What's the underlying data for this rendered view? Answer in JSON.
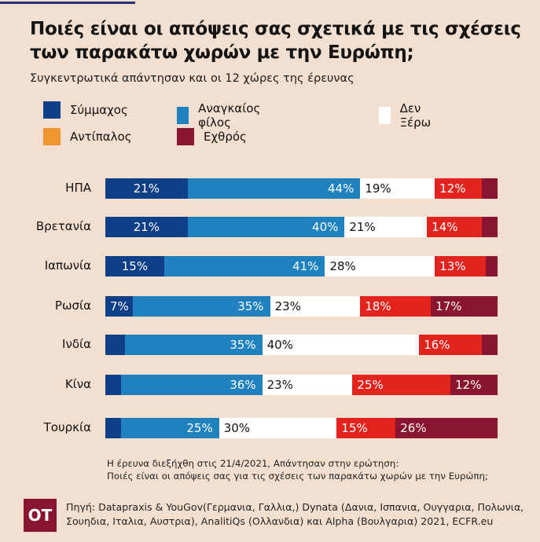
{
  "header": {
    "title": "Ποιές είναι οι απόψεις σας σχετικά με τις σχέσεις των παρακάτω χωρών με την Ευρώπη;",
    "subtitle": "Συγκεντρωτικά απάντησαν και οι 12 χώρες της έρευνας"
  },
  "chart_data": {
    "type": "bar",
    "orientation": "horizontal",
    "stacked": true,
    "title": "Ποιές είναι οι απόψεις σας σχετικά με τις σχέσεις των παρακάτω χωρών με την Ευρώπη;",
    "subtitle": "Συγκεντρωτικά απάντησαν και οι 12 χώρες της έρευνας",
    "xlabel": "",
    "ylabel": "",
    "unit": "%",
    "legend_position": "top",
    "categories": [
      "ΗΠΑ",
      "Βρετανία",
      "Ιαπωνία",
      "Ρωσία",
      "Ινδία",
      "Κίνα",
      "Τουρκία"
    ],
    "series": [
      {
        "name": "Σύμμαχος",
        "legend_color": "#0f3f86",
        "bar_color": "#0f3f86",
        "text_color": "#ffffff",
        "values": [
          21,
          21,
          15,
          7,
          5,
          4,
          4
        ],
        "labels": [
          "21%",
          "21%",
          "15%",
          "7%",
          "",
          "",
          ""
        ],
        "label_align": "center"
      },
      {
        "name": "Αναγκαίος φίλος",
        "legend_color": "#1f82bf",
        "bar_color": "#1f82bf",
        "text_color": "#ffffff",
        "values": [
          44,
          40,
          41,
          35,
          35,
          36,
          25
        ],
        "labels": [
          "44%",
          "40%",
          "41%",
          "35%",
          "35%",
          "36%",
          "25%"
        ],
        "label_align": "right"
      },
      {
        "name": "Δεν Ξέρω",
        "legend_color": "#ffffff",
        "bar_color": "#ffffff",
        "text_color": "#111111",
        "values": [
          19,
          21,
          28,
          23,
          40,
          23,
          30
        ],
        "labels": [
          "19%",
          "21%",
          "28%",
          "23%",
          "40%",
          "23%",
          "30%"
        ],
        "label_align": "left"
      },
      {
        "name": "Αντίπαλος",
        "legend_color": "#f0962f",
        "bar_color": "#e3231d",
        "text_color": "#ffffff",
        "values": [
          12,
          14,
          13,
          18,
          16,
          25,
          15
        ],
        "labels": [
          "12%",
          "14%",
          "13%",
          "18%",
          "16%",
          "25%",
          "15%"
        ],
        "label_align": "left"
      },
      {
        "name": "Εχθρός",
        "legend_color": "#8a1530",
        "bar_color": "#8a1530",
        "text_color": "#ffffff",
        "values": [
          4,
          4,
          3,
          17,
          4,
          12,
          26
        ],
        "labels": [
          "",
          "",
          "",
          "17%",
          "",
          "12%",
          "26%"
        ],
        "label_align": "left"
      }
    ],
    "xlim": [
      0,
      100
    ],
    "grid": false
  },
  "legend": {
    "items": [
      "Σύμμαχος",
      "Αναγκαίος φίλος",
      "Δεν Ξέρω",
      "Αντίπαλος",
      "Εχθρός"
    ]
  },
  "footer": {
    "note_line1": "Η έρευνα διεξήχθη στις 21/4/2021, Απάντησαν στην ερώτηση:",
    "note_line2": "Ποιές είναι οι απόψεις σας για τις σχέσεις των παρακάτω χωρών με την Ευρώπη;",
    "logo_text": "OT",
    "source": "Πηγή: Datapraxis & YouGov(Γερμανια, Γαλλια,) Dynata (Δανια, Ισπανια, Ουγγαρια, Πολωνια, Σουηδια, Ιταλια, Αυστρια), AnalitiQs (Ολλανδια) και Alpha (Βουλγαρια) 2021, ECFR.eu"
  }
}
